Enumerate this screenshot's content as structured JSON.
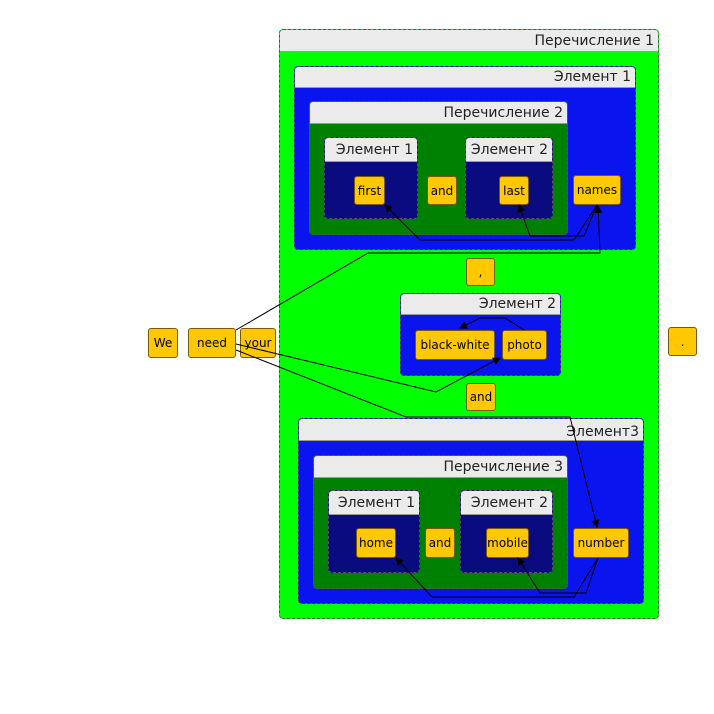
{
  "groups": {
    "enum1": "Перечисление 1",
    "elem1": "Элемент 1",
    "enum2": "Перечисление 2",
    "enum2_e1": "Элемент 1",
    "enum2_e2": "Элемент 2",
    "elem2": "Элемент 2",
    "elem3": "Элемент3",
    "enum3": "Перечисление 3",
    "enum3_e1": "Элемент 1",
    "enum3_e2": "Элемент 2"
  },
  "tokens": {
    "we": "We",
    "need": "need",
    "your": "your",
    "first": "first",
    "and1": "and",
    "last": "last",
    "names": "names",
    "comma": ",",
    "black_white": "black-white",
    "photo": "photo",
    "and2": "and",
    "home": "home",
    "and3": "and",
    "mobile": "mobile",
    "number": "number",
    "period": "."
  },
  "colors": {
    "outer_enum": "#00ff00",
    "element": "#0a14ee",
    "inner_enum": "#008000",
    "inner_element": "#0b0b80",
    "token": "#ffc800",
    "header": "#ebebeb"
  }
}
